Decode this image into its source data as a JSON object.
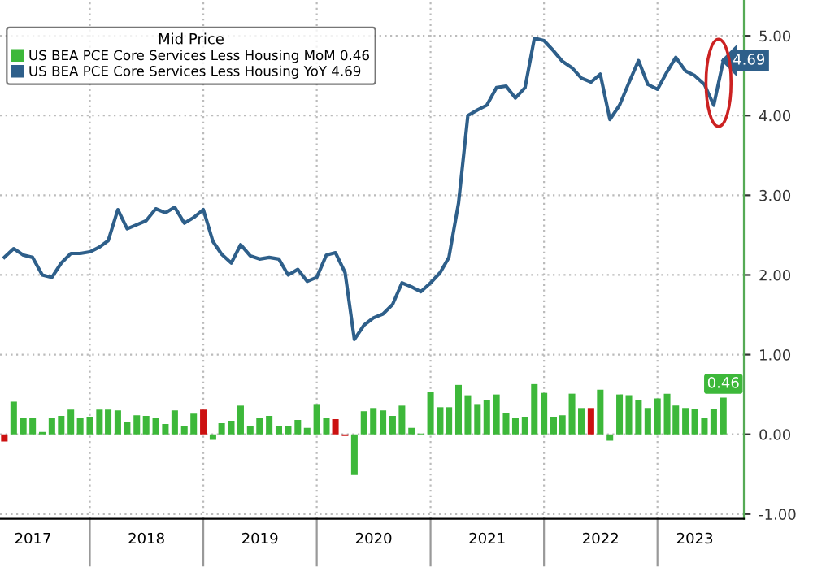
{
  "chart_data": {
    "type": "bar",
    "legend_title": "Mid Price",
    "legend": "top left",
    "grid": true,
    "x": [
      "2017-04",
      "2017-05",
      "2017-06",
      "2017-07",
      "2017-08",
      "2017-09",
      "2017-10",
      "2017-11",
      "2017-12",
      "2018-01",
      "2018-02",
      "2018-03",
      "2018-04",
      "2018-05",
      "2018-06",
      "2018-07",
      "2018-08",
      "2018-09",
      "2018-10",
      "2018-11",
      "2018-12",
      "2019-01",
      "2019-02",
      "2019-03",
      "2019-04",
      "2019-05",
      "2019-06",
      "2019-07",
      "2019-08",
      "2019-09",
      "2019-10",
      "2019-11",
      "2019-12",
      "2020-01",
      "2020-02",
      "2020-03",
      "2020-04",
      "2020-05",
      "2020-06",
      "2020-07",
      "2020-08",
      "2020-09",
      "2020-10",
      "2020-11",
      "2020-12",
      "2021-01",
      "2021-02",
      "2021-03",
      "2021-04",
      "2021-05",
      "2021-06",
      "2021-07",
      "2021-08",
      "2021-09",
      "2021-10",
      "2021-11",
      "2021-12",
      "2022-01",
      "2022-02",
      "2022-03",
      "2022-04",
      "2022-05",
      "2022-06",
      "2022-07",
      "2022-08",
      "2022-09",
      "2022-10",
      "2022-11",
      "2022-12",
      "2023-01",
      "2023-02",
      "2023-03",
      "2023-04",
      "2023-05",
      "2023-06",
      "2023-07",
      "2023-08"
    ],
    "xlim": [
      "2017-03-18",
      "2023-10-06"
    ],
    "xticks": [
      {
        "value": "2017-07-02",
        "label": "2017"
      },
      {
        "value": "2018-01-01",
        "label": null
      },
      {
        "value": "2018-07-02",
        "label": "2018"
      },
      {
        "value": "2019-01-01",
        "label": null
      },
      {
        "value": "2019-07-02",
        "label": "2019"
      },
      {
        "value": "2020-01-01",
        "label": null
      },
      {
        "value": "2020-07-02",
        "label": "2020"
      },
      {
        "value": "2021-01-01",
        "label": null
      },
      {
        "value": "2021-07-02",
        "label": "2021"
      },
      {
        "value": "2022-01-01",
        "label": null
      },
      {
        "value": "2022-07-02",
        "label": "2022"
      },
      {
        "value": "2023-01-01",
        "label": null
      },
      {
        "value": "2023-05-01",
        "label": "2023"
      }
    ],
    "ylim": [
      -1.06,
      5.45
    ],
    "yticks": [
      {
        "value": -1,
        "label": "-1.00"
      },
      {
        "value": 0,
        "label": "0.00"
      },
      {
        "value": 1,
        "label": "1.00"
      },
      {
        "value": 2,
        "label": "2.00"
      },
      {
        "value": 3,
        "label": "3.00"
      },
      {
        "value": 4,
        "label": "4.00"
      },
      {
        "value": 5,
        "label": "5.00"
      }
    ],
    "series": [
      {
        "name": "US BEA PCE Core Services Less Housing MoM 0.46",
        "color": "#3db83a",
        "colors": [
          "#cc1111",
          "#3db83a",
          "#3db83a",
          "#3db83a",
          "#3db83a",
          "#3db83a",
          "#3db83a",
          "#3db83a",
          "#3db83a",
          "#3db83a",
          "#3db83a",
          "#3db83a",
          "#3db83a",
          "#3db83a",
          "#3db83a",
          "#3db83a",
          "#3db83a",
          "#3db83a",
          "#3db83a",
          "#3db83a",
          "#3db83a",
          "#cc1111",
          "#3db83a",
          "#3db83a",
          "#3db83a",
          "#3db83a",
          "#3db83a",
          "#3db83a",
          "#3db83a",
          "#3db83a",
          "#3db83a",
          "#3db83a",
          "#3db83a",
          "#3db83a",
          "#3db83a",
          "#cc1111",
          "#cc1111",
          "#3db83a",
          "#3db83a",
          "#3db83a",
          "#3db83a",
          "#3db83a",
          "#3db83a",
          "#3db83a",
          "#3db83a",
          "#3db83a",
          "#3db83a",
          "#3db83a",
          "#3db83a",
          "#3db83a",
          "#3db83a",
          "#3db83a",
          "#3db83a",
          "#3db83a",
          "#3db83a",
          "#3db83a",
          "#3db83a",
          "#3db83a",
          "#3db83a",
          "#3db83a",
          "#3db83a",
          "#3db83a",
          "#cc1111",
          "#3db83a",
          "#3db83a",
          "#3db83a",
          "#3db83a",
          "#3db83a",
          "#3db83a",
          "#3db83a",
          "#3db83a",
          "#3db83a",
          "#3db83a",
          "#3db83a",
          "#3db83a",
          "#3db83a",
          "#3db83a"
        ],
        "values": [
          -0.09,
          0.41,
          0.2,
          0.2,
          0.03,
          0.2,
          0.23,
          0.31,
          0.2,
          0.22,
          0.31,
          0.31,
          0.3,
          0.15,
          0.24,
          0.23,
          0.2,
          0.13,
          0.3,
          0.11,
          0.26,
          0.31,
          -0.07,
          0.14,
          0.17,
          0.36,
          0.11,
          0.2,
          0.23,
          0.1,
          0.1,
          0.18,
          0.08,
          0.38,
          0.2,
          0.19,
          -0.02,
          -0.51,
          0.29,
          0.33,
          0.3,
          0.23,
          0.36,
          0.08,
          0.01,
          0.53,
          0.34,
          0.34,
          0.62,
          0.49,
          0.38,
          0.43,
          0.5,
          0.27,
          0.2,
          0.22,
          0.63,
          0.52,
          0.22,
          0.24,
          0.51,
          0.33,
          0.33,
          0.56,
          -0.08,
          0.5,
          0.49,
          0.43,
          0.33,
          0.45,
          0.51,
          0.36,
          0.33,
          0.32,
          0.21,
          0.32,
          0.46
        ],
        "value_labels": [
          null,
          null,
          null,
          null,
          null,
          null,
          null,
          null,
          null,
          null,
          null,
          null,
          null,
          null,
          null,
          null,
          null,
          null,
          null,
          null,
          null,
          null,
          null,
          null,
          null,
          null,
          null,
          null,
          null,
          null,
          null,
          null,
          null,
          null,
          null,
          null,
          null,
          null,
          null,
          null,
          null,
          null,
          null,
          null,
          null,
          null,
          null,
          null,
          null,
          null,
          null,
          null,
          null,
          null,
          null,
          null,
          null,
          null,
          null,
          null,
          null,
          null,
          null,
          null,
          null,
          null,
          null,
          null,
          null,
          null,
          null,
          null,
          null,
          null,
          null,
          null,
          "0.46"
        ]
      },
      {
        "type": "line",
        "name": "US BEA PCE Core Services Less Housing YoY 4.69",
        "color": "#2e5f8a",
        "values": [
          2.22,
          2.33,
          2.25,
          2.22,
          2.0,
          1.97,
          2.15,
          2.27,
          2.27,
          2.29,
          2.35,
          2.43,
          2.82,
          2.58,
          2.63,
          2.68,
          2.83,
          2.78,
          2.85,
          2.65,
          2.72,
          2.82,
          2.42,
          2.26,
          2.15,
          2.38,
          2.24,
          2.2,
          2.22,
          2.2,
          2.0,
          2.07,
          1.92,
          1.97,
          2.25,
          2.28,
          2.03,
          1.19,
          1.37,
          1.46,
          1.51,
          1.63,
          1.9,
          1.85,
          1.79,
          1.9,
          2.03,
          2.22,
          2.9,
          4.0,
          4.07,
          4.13,
          4.35,
          4.37,
          4.22,
          4.35,
          4.97,
          4.94,
          4.81,
          4.68,
          4.6,
          4.47,
          4.42,
          4.52,
          3.95,
          4.13,
          4.41,
          4.69,
          4.39,
          4.33,
          4.55,
          4.73,
          4.56,
          4.5,
          4.39,
          4.13,
          4.69
        ],
        "value_labels": [
          null,
          null,
          null,
          null,
          null,
          null,
          null,
          null,
          null,
          null,
          null,
          null,
          null,
          null,
          null,
          null,
          null,
          null,
          null,
          null,
          null,
          null,
          null,
          null,
          null,
          null,
          null,
          null,
          null,
          null,
          null,
          null,
          null,
          null,
          null,
          null,
          null,
          null,
          null,
          null,
          null,
          null,
          null,
          null,
          null,
          null,
          null,
          null,
          null,
          null,
          null,
          null,
          null,
          null,
          null,
          null,
          null,
          null,
          null,
          null,
          null,
          null,
          null,
          null,
          null,
          null,
          null,
          null,
          null,
          null,
          null,
          null,
          null,
          null,
          null,
          null,
          "4.69"
        ]
      }
    ]
  }
}
